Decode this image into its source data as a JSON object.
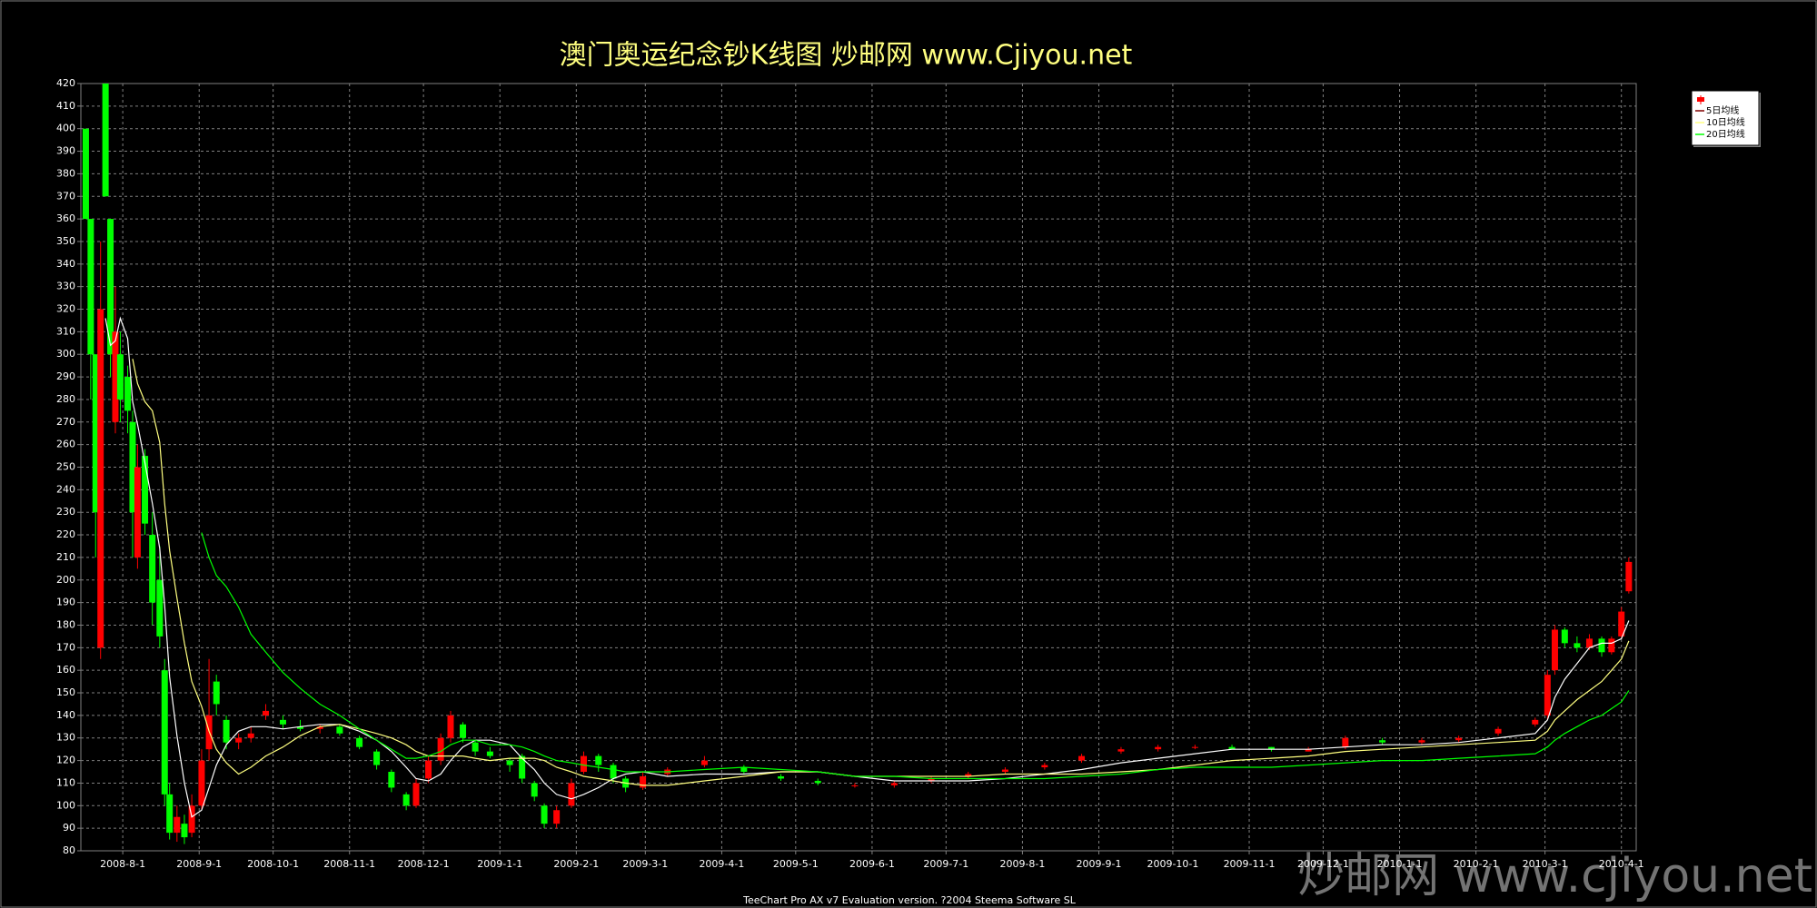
{
  "chart_data": {
    "type": "candlestick",
    "title": "澳门奥运纪念钞K线图  炒邮网 www.Cjiyou.net",
    "footer": "TeeChart Pro AX v7 Evaluation version. ?2004 Steema Software SL",
    "watermark": "炒邮网 www.cjiyou.net",
    "x": [
      "2008-7-17",
      "2008-7-19",
      "2008-7-21",
      "2008-7-23",
      "2008-7-25",
      "2008-7-27",
      "2008-7-29",
      "2008-7-31",
      "2008-8-3",
      "2008-8-5",
      "2008-8-7",
      "2008-8-10",
      "2008-8-13",
      "2008-8-16",
      "2008-8-18",
      "2008-8-20",
      "2008-8-23",
      "2008-8-26",
      "2008-8-29",
      "2008-9-2",
      "2008-9-5",
      "2008-9-8",
      "2008-9-12",
      "2008-9-17",
      "2008-9-22",
      "2008-9-28",
      "2008-10-5",
      "2008-10-12",
      "2008-10-20",
      "2008-10-28",
      "2008-11-5",
      "2008-11-12",
      "2008-11-18",
      "2008-11-24",
      "2008-11-28",
      "2008-12-3",
      "2008-12-8",
      "2008-12-12",
      "2008-12-17",
      "2008-12-22",
      "2008-12-28",
      "2009-1-5",
      "2009-1-10",
      "2009-1-15",
      "2009-1-19",
      "2009-1-24",
      "2009-1-30",
      "2009-2-4",
      "2009-2-10",
      "2009-2-16",
      "2009-2-21",
      "2009-2-28",
      "2009-3-10",
      "2009-3-25",
      "2009-4-10",
      "2009-4-25",
      "2009-5-10",
      "2009-5-25",
      "2009-6-10",
      "2009-6-25",
      "2009-7-10",
      "2009-7-25",
      "2009-8-10",
      "2009-8-25",
      "2009-9-10",
      "2009-9-25",
      "2009-10-10",
      "2009-10-25",
      "2009-11-10",
      "2009-11-25",
      "2009-12-10",
      "2009-12-25",
      "2010-1-10",
      "2010-1-25",
      "2010-2-10",
      "2010-2-25",
      "2010-3-2",
      "2010-3-5",
      "2010-3-9",
      "2010-3-14",
      "2010-3-19",
      "2010-3-24",
      "2010-3-28",
      "2010-4-1",
      "2010-4-4"
    ],
    "open": [
      400,
      360,
      300,
      170,
      420,
      360,
      270,
      300,
      290,
      270,
      210,
      255,
      220,
      200,
      160,
      105,
      88,
      92,
      88,
      100,
      125,
      155,
      138,
      128,
      130,
      140,
      138,
      135,
      134,
      135,
      130,
      124,
      115,
      105,
      100,
      112,
      120,
      130,
      136,
      128,
      124,
      120,
      122,
      110,
      100,
      92,
      100,
      115,
      122,
      118,
      112,
      108,
      114,
      118,
      117,
      113,
      111,
      109,
      109,
      111,
      113,
      115,
      117,
      120,
      124,
      125,
      126,
      126,
      126,
      124,
      126,
      129,
      128,
      129,
      132,
      136,
      140,
      160,
      178,
      172,
      170,
      174,
      168,
      175,
      195
    ],
    "high": [
      400,
      360,
      300,
      350,
      420,
      360,
      330,
      310,
      295,
      275,
      260,
      258,
      230,
      215,
      165,
      110,
      100,
      96,
      105,
      125,
      165,
      158,
      140,
      132,
      135,
      145,
      140,
      138,
      136,
      136,
      131,
      125,
      116,
      106,
      112,
      122,
      132,
      142,
      137,
      129,
      126,
      121,
      123,
      111,
      101,
      100,
      112,
      124,
      123,
      119,
      113,
      115,
      117,
      122,
      118,
      114,
      112,
      110,
      111,
      113,
      115,
      117,
      119,
      123,
      126,
      127,
      127,
      127,
      126,
      126,
      131,
      130,
      130,
      131,
      135,
      139,
      160,
      180,
      179,
      175,
      176,
      175,
      175,
      188,
      210
    ],
    "low": [
      360,
      280,
      210,
      165,
      370,
      290,
      265,
      270,
      265,
      210,
      205,
      220,
      180,
      170,
      100,
      85,
      84,
      83,
      86,
      98,
      120,
      140,
      125,
      125,
      128,
      138,
      134,
      133,
      132,
      131,
      125,
      116,
      106,
      98,
      99,
      110,
      118,
      128,
      128,
      122,
      121,
      115,
      110,
      102,
      90,
      90,
      99,
      114,
      115,
      110,
      106,
      107,
      113,
      117,
      114,
      111,
      109,
      108,
      108,
      110,
      112,
      114,
      116,
      119,
      123,
      124,
      125,
      125,
      124,
      124,
      125,
      127,
      127,
      128,
      131,
      135,
      138,
      158,
      170,
      168,
      169,
      166,
      167,
      174,
      194
    ],
    "close": [
      360,
      300,
      230,
      320,
      370,
      300,
      310,
      280,
      275,
      230,
      250,
      225,
      190,
      175,
      105,
      88,
      95,
      86,
      100,
      120,
      140,
      145,
      128,
      130,
      132,
      142,
      136,
      134,
      135,
      132,
      126,
      118,
      108,
      100,
      110,
      120,
      130,
      140,
      130,
      124,
      122,
      118,
      112,
      104,
      92,
      98,
      110,
      122,
      118,
      112,
      108,
      113,
      116,
      120,
      115,
      112,
      110,
      109,
      110,
      112,
      114,
      116,
      118,
      122,
      125,
      126,
      126,
      125,
      125,
      125,
      130,
      128,
      129,
      130,
      134,
      138,
      158,
      178,
      172,
      170,
      174,
      168,
      174,
      186,
      208
    ],
    "up_color": "#ff0000",
    "down_color": "#00ff00",
    "series": [
      {
        "name": "5日均线",
        "color": "#ffffff",
        "values": [
          null,
          null,
          null,
          null,
          316,
          304,
          306,
          316,
          307,
          279,
          269,
          252,
          234,
          214,
          189,
          157,
          131,
          110,
          95,
          98,
          108,
          118,
          127,
          133,
          135,
          135,
          134,
          135,
          136,
          136,
          133,
          129,
          124,
          117,
          112,
          111,
          114,
          120,
          126,
          129,
          129,
          127,
          121,
          116,
          110,
          105,
          103,
          105,
          108,
          112,
          114,
          115,
          113,
          114,
          114,
          115,
          115,
          113,
          111,
          111,
          111,
          112,
          114,
          116,
          119,
          121,
          123,
          125,
          125,
          125,
          126,
          127,
          127,
          128,
          130,
          132,
          138,
          148,
          156,
          163,
          170,
          172,
          172,
          174,
          182
        ]
      },
      {
        "name": "10日均线",
        "color": "#ffff80",
        "values": [
          null,
          null,
          null,
          null,
          null,
          null,
          null,
          null,
          null,
          298,
          287,
          279,
          275,
          261,
          234,
          213,
          192,
          172,
          155,
          144,
          133,
          125,
          119,
          114,
          117,
          122,
          126,
          131,
          135,
          136,
          134,
          132,
          130,
          127,
          124,
          122,
          122,
          122,
          122,
          121,
          120,
          121,
          121,
          121,
          120,
          117,
          115,
          113,
          112,
          111,
          110,
          109,
          109,
          111,
          113,
          115,
          115,
          113,
          113,
          113,
          113,
          114,
          114,
          114,
          115,
          116,
          118,
          120,
          121,
          122,
          124,
          125,
          126,
          127,
          128,
          129,
          133,
          138,
          142,
          147,
          151,
          155,
          160,
          165,
          173
        ]
      },
      {
        "name": "20日均线",
        "color": "#00ff00",
        "values": [
          null,
          null,
          null,
          null,
          null,
          null,
          null,
          null,
          null,
          null,
          null,
          null,
          null,
          null,
          null,
          null,
          null,
          null,
          null,
          221,
          210,
          202,
          197,
          188,
          176,
          168,
          159,
          152,
          145,
          140,
          134,
          129,
          125,
          121,
          121,
          122,
          124,
          127,
          129,
          129,
          127,
          127,
          126,
          124,
          122,
          120,
          119,
          118,
          117,
          116,
          115,
          115,
          115,
          116,
          117,
          116,
          115,
          113,
          113,
          112,
          112,
          112,
          112,
          113,
          114,
          116,
          117,
          117,
          117,
          118,
          119,
          120,
          120,
          121,
          122,
          123,
          126,
          129,
          132,
          135,
          138,
          140,
          143,
          146,
          151
        ]
      }
    ],
    "xlim": [
      "2008-7-15",
      "2010-4-7"
    ],
    "xticks": [
      "2008-8-1",
      "2008-9-1",
      "2008-10-1",
      "2008-11-1",
      "2008-12-1",
      "2009-1-1",
      "2009-2-1",
      "2009-3-1",
      "2009-4-1",
      "2009-5-1",
      "2009-6-1",
      "2009-7-1",
      "2009-8-1",
      "2009-9-1",
      "2009-10-1",
      "2009-11-1",
      "2009-12-1",
      "2010-1-1",
      "2010-2-1",
      "2010-3-1",
      "2010-4-1"
    ],
    "ylim": [
      80,
      420
    ],
    "yticks": [
      80,
      90,
      100,
      110,
      120,
      130,
      140,
      150,
      160,
      170,
      180,
      190,
      200,
      210,
      220,
      230,
      240,
      250,
      260,
      270,
      280,
      290,
      300,
      310,
      320,
      330,
      340,
      350,
      360,
      370,
      380,
      390,
      400,
      410,
      420
    ],
    "grid": true,
    "legend": "top-right"
  }
}
